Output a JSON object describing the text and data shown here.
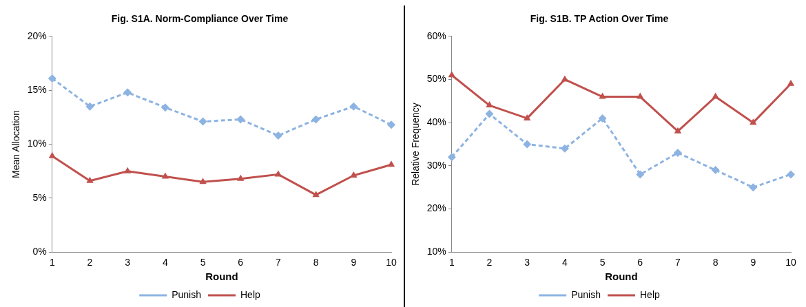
{
  "chart_data": [
    {
      "type": "line",
      "title": "Fig. S1A. Norm-Compliance Over Time",
      "xlabel": "Round",
      "ylabel": "Mean Allocation",
      "categories": [
        "1",
        "2",
        "3",
        "4",
        "5",
        "6",
        "7",
        "8",
        "9",
        "10"
      ],
      "series": [
        {
          "name": "Punish",
          "color": "#8db3e2",
          "marker": "diamond",
          "line_style": "dashed",
          "values": [
            16.1,
            13.5,
            14.8,
            13.4,
            12.1,
            12.3,
            10.8,
            12.3,
            13.5,
            11.8
          ]
        },
        {
          "name": "Help",
          "color": "#c0504d",
          "marker": "triangle",
          "line_style": "solid",
          "values": [
            8.9,
            6.6,
            7.5,
            7.0,
            6.5,
            6.8,
            7.2,
            5.3,
            7.1,
            8.1
          ]
        }
      ],
      "ylim": [
        0,
        20
      ],
      "yticks": [
        {
          "value": 0,
          "label": "0%"
        },
        {
          "value": 5,
          "label": "5%"
        },
        {
          "value": 10,
          "label": "10%"
        },
        {
          "value": 15,
          "label": "15%"
        },
        {
          "value": 20,
          "label": "20%"
        }
      ],
      "grid": false,
      "legend": "bottom"
    },
    {
      "type": "line",
      "title": "Fig. S1B. TP Action Over Time",
      "xlabel": "Round",
      "ylabel": "Relative Frequency",
      "categories": [
        "1",
        "2",
        "3",
        "4",
        "5",
        "6",
        "7",
        "8",
        "9",
        "10"
      ],
      "series": [
        {
          "name": "Punish",
          "color": "#8db3e2",
          "marker": "diamond",
          "line_style": "dashed",
          "values": [
            32,
            42,
            35,
            34,
            41,
            28,
            33,
            29,
            25,
            28
          ]
        },
        {
          "name": "Help",
          "color": "#c0504d",
          "marker": "triangle",
          "line_style": "solid",
          "values": [
            51,
            44,
            41,
            50,
            46,
            46,
            38,
            46,
            40,
            49
          ]
        }
      ],
      "ylim": [
        10,
        60
      ],
      "yticks": [
        {
          "value": 10,
          "label": "10%"
        },
        {
          "value": 20,
          "label": "20%"
        },
        {
          "value": 30,
          "label": "30%"
        },
        {
          "value": 40,
          "label": "40%"
        },
        {
          "value": 50,
          "label": "50%"
        },
        {
          "value": 60,
          "label": "60%"
        }
      ],
      "grid": false,
      "legend": "bottom"
    }
  ]
}
